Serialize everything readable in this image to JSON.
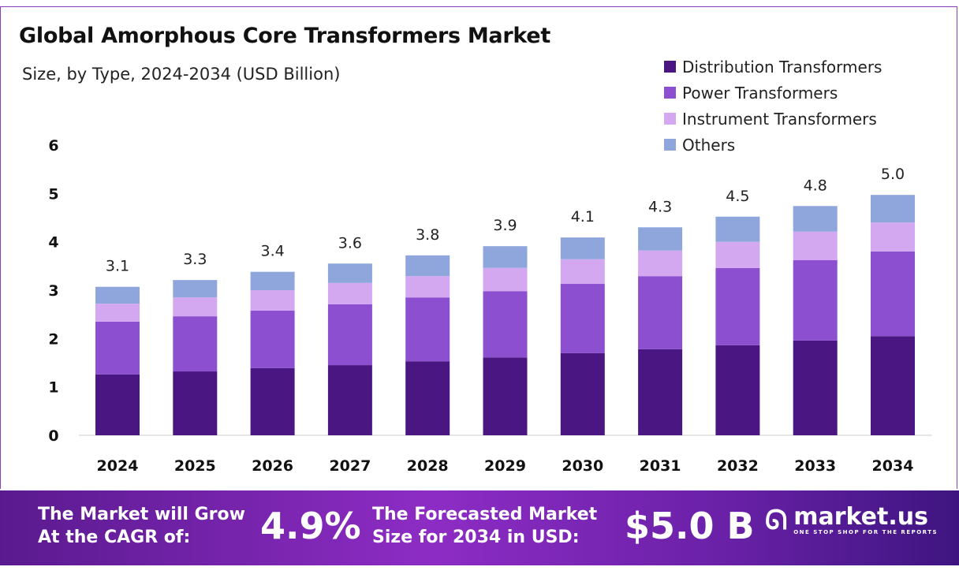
{
  "header": {
    "title": "Global Amorphous Core Transformers Market",
    "subtitle": "Size, by Type, 2024-2034 (USD Billion)"
  },
  "chart_data": {
    "type": "stacked-bar",
    "categories": [
      "2024",
      "2025",
      "2026",
      "2027",
      "2028",
      "2029",
      "2030",
      "2031",
      "2032",
      "2033",
      "2034"
    ],
    "series": [
      {
        "name": "Distribution Transformers",
        "color": "#4a1782",
        "values": [
          1.26,
          1.32,
          1.39,
          1.45,
          1.53,
          1.61,
          1.7,
          1.78,
          1.86,
          1.96,
          2.05
        ]
      },
      {
        "name": "Power Transformers",
        "color": "#8b4fd0",
        "values": [
          1.09,
          1.14,
          1.19,
          1.26,
          1.32,
          1.37,
          1.43,
          1.51,
          1.6,
          1.66,
          1.75
        ]
      },
      {
        "name": "Instrument Transformers",
        "color": "#d3a8f0",
        "values": [
          0.37,
          0.39,
          0.42,
          0.44,
          0.44,
          0.48,
          0.51,
          0.53,
          0.54,
          0.59,
          0.6
        ]
      },
      {
        "name": "Others",
        "color": "#8ea6dc",
        "values": [
          0.35,
          0.36,
          0.38,
          0.4,
          0.43,
          0.45,
          0.45,
          0.48,
          0.52,
          0.53,
          0.57
        ]
      }
    ],
    "totals": [
      "3.1",
      "3.3",
      "3.4",
      "3.6",
      "3.8",
      "3.9",
      "4.1",
      "4.3",
      "4.5",
      "4.8",
      "5.0"
    ],
    "yticks": [
      "0",
      "1",
      "2",
      "3",
      "4",
      "5",
      "6"
    ],
    "ylim": [
      0,
      6
    ],
    "grid": false,
    "legend": "top-right"
  },
  "footer": {
    "cagr_label": [
      "The Market will Grow",
      "At the CAGR of:"
    ],
    "cagr_value": "4.9%",
    "forecast_label": [
      "The Forecasted Market",
      "Size for 2034 in USD:"
    ],
    "forecast_value": "$5.0 B",
    "logo_name": "market.us",
    "logo_tagline": "ONE STOP SHOP FOR THE REPORTS"
  }
}
